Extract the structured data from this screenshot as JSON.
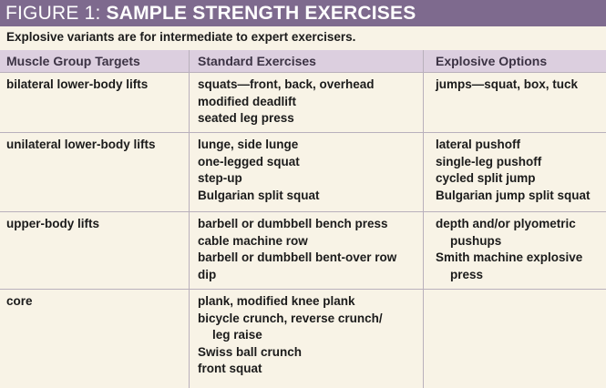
{
  "title": {
    "prefix": "FIGURE 1:",
    "main": "SAMPLE STRENGTH EXERCISES"
  },
  "subtitle": "Explosive variants are for intermediate to expert exercisers.",
  "columns": [
    "Muscle Group Targets",
    "Standard Exercises",
    "Explosive Options"
  ],
  "rows": [
    {
      "muscle_group": "bilateral lower-body lifts",
      "standard": [
        "squats—front, back, overhead",
        "modified deadlift",
        "seated leg press"
      ],
      "explosive": [
        "jumps—squat, box, tuck"
      ]
    },
    {
      "muscle_group": "unilateral lower-body lifts",
      "standard": [
        "lunge, side lunge",
        "one-legged squat",
        "step-up",
        "Bulgarian split squat"
      ],
      "explosive": [
        "lateral pushoff",
        "single-leg pushoff",
        "cycled split jump",
        "Bulgarian jump split squat"
      ]
    },
    {
      "muscle_group": "upper-body lifts",
      "standard": [
        "barbell or dumbbell bench press",
        "cable machine row",
        "barbell or dumbbell bent-over row",
        "dip"
      ],
      "explosive": [
        "depth and/or plyometric",
        "pushups",
        "Smith machine explosive",
        "press"
      ]
    },
    {
      "muscle_group": "core",
      "standard": [
        "plank, modified knee plank",
        "bicycle crunch, reverse crunch/",
        "leg raise",
        "Swiss ball crunch",
        "front squat"
      ],
      "explosive": []
    }
  ],
  "colors": {
    "title_bar": "#7e6a8e",
    "header_row": "#dccfdf",
    "background": "#f8f3e6",
    "rule": "#b9b0bc"
  }
}
